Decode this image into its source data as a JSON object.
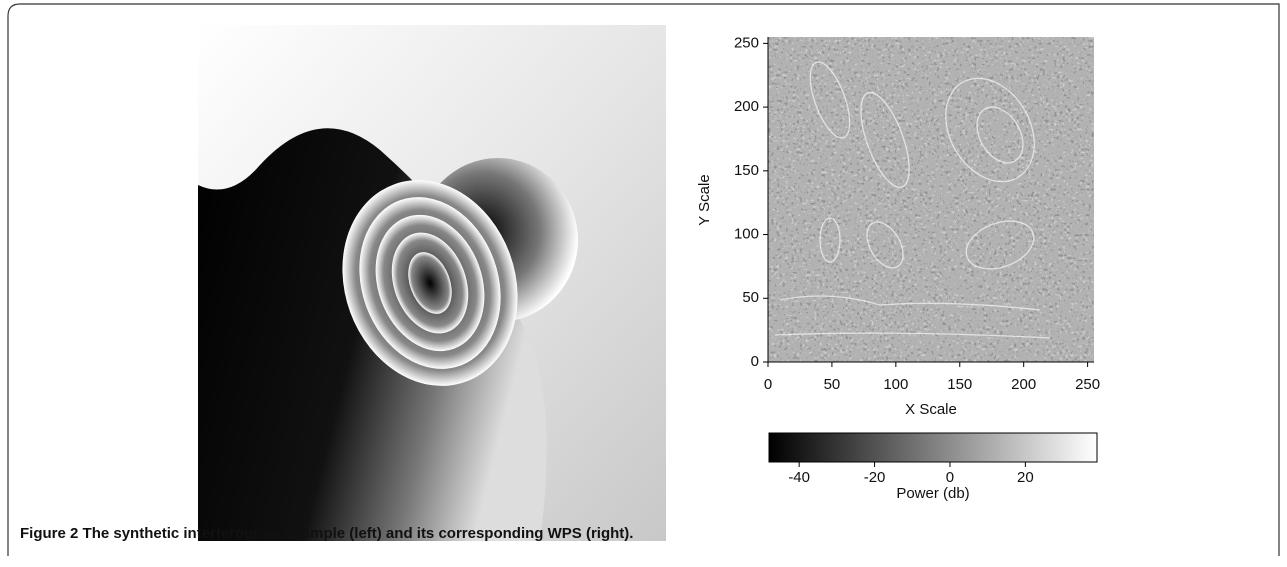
{
  "figure": {
    "label": "Figure 2",
    "caption": "The synthetic interferogram example (left) and its corresponding WPS (right)."
  },
  "chart_data": {
    "type": "heatmap",
    "xlabel": "X Scale",
    "ylabel": "Y Scale",
    "xlim": [
      0,
      255
    ],
    "ylim": [
      0,
      255
    ],
    "xticks": [
      0,
      50,
      100,
      150,
      200,
      250
    ],
    "yticks": [
      0,
      50,
      100,
      150,
      200,
      250
    ],
    "colorbar": {
      "label": "Power (db)",
      "lim": [
        -48,
        39
      ],
      "ticks": [
        -40,
        -20,
        0,
        20
      ]
    }
  }
}
